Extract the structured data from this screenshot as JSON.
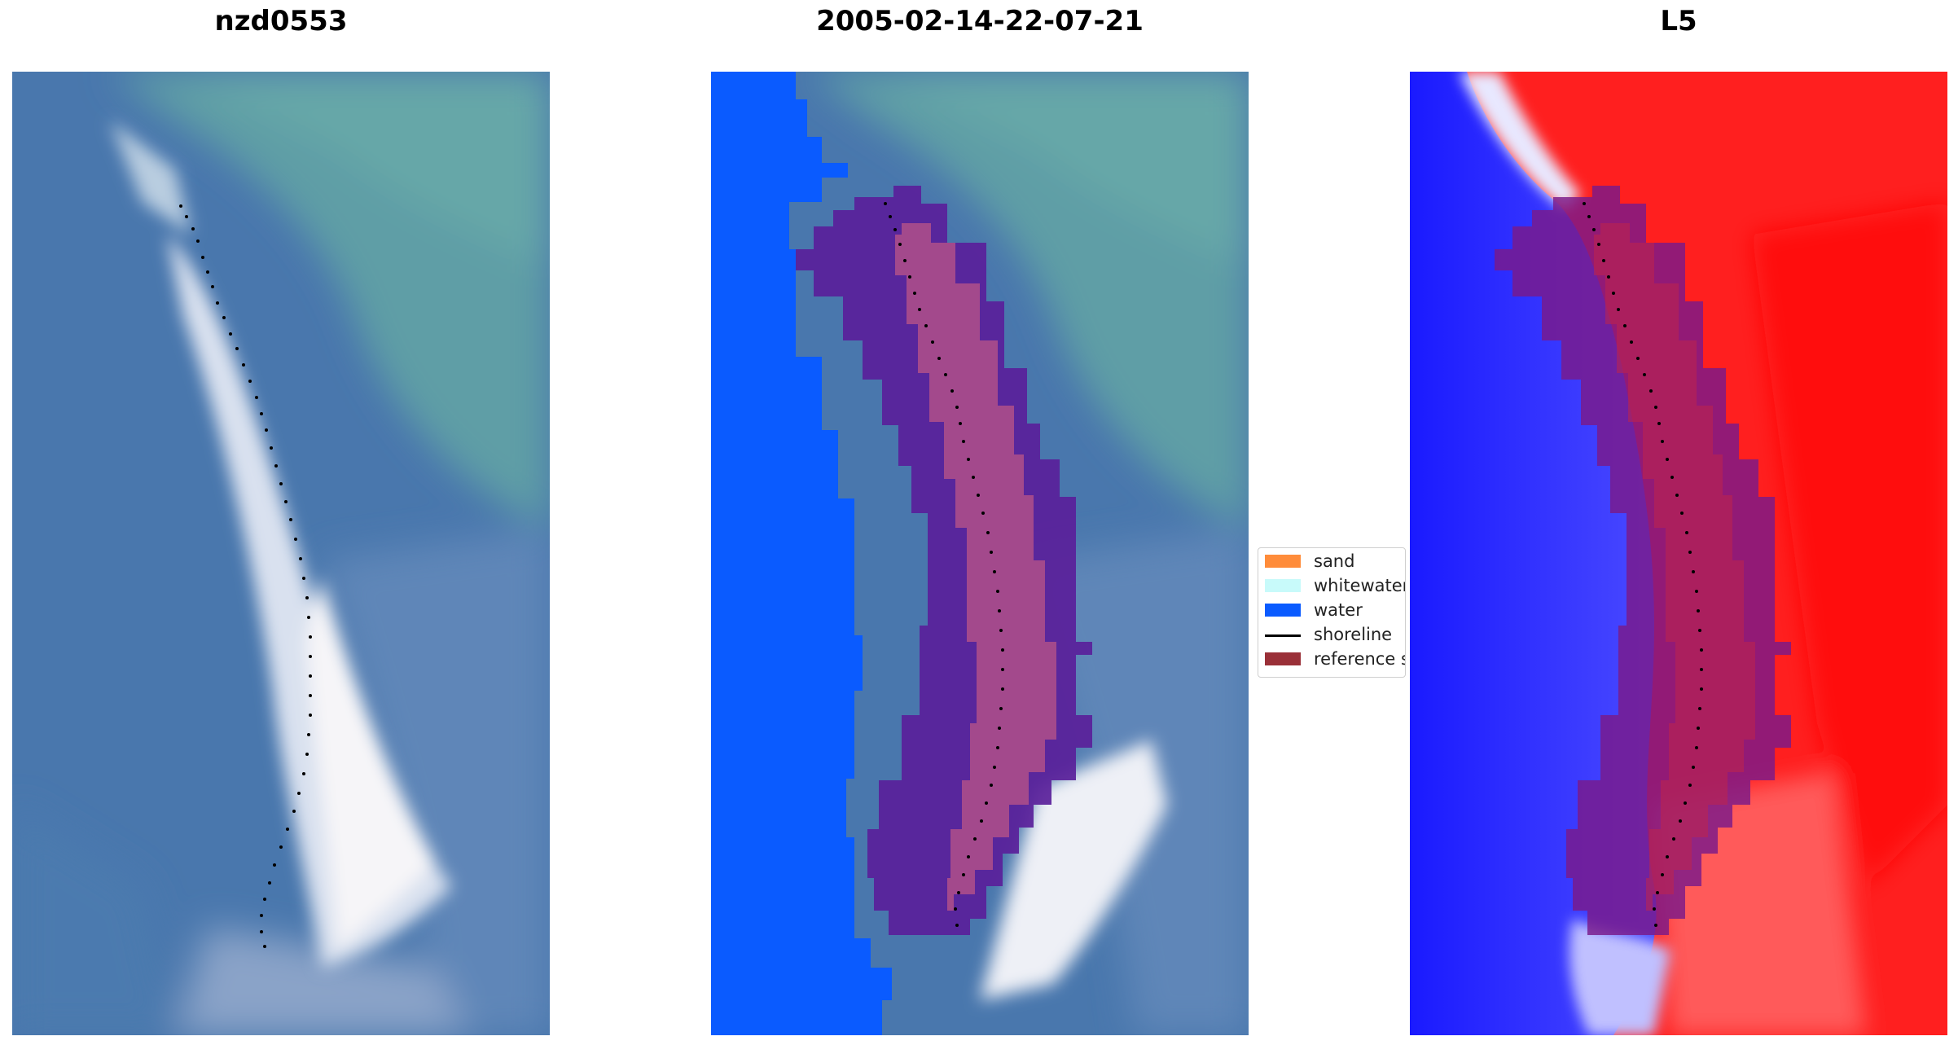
{
  "titles": {
    "left": "nzd0553",
    "center": "2005-02-14-22-07-21",
    "right": "L5"
  },
  "legend": {
    "items": [
      {
        "label": "sand",
        "color": "#ff8c3a",
        "kind": "patch"
      },
      {
        "label": "whitewater",
        "color": "#c8fafa",
        "kind": "patch"
      },
      {
        "label": "water",
        "color": "#0a5bff",
        "kind": "patch"
      },
      {
        "label": "shoreline",
        "color": "#000000",
        "kind": "line"
      },
      {
        "label": "reference shoreline",
        "color": "#9a3038",
        "kind": "patch"
      }
    ]
  },
  "colors": {
    "ocean": "#4a7ab0",
    "teal_shallow": "#5f9ea4",
    "sand_white": "#f2f2f6",
    "water_class": "#0a5bff",
    "buffer": "#5a1f9a",
    "buffer_inner": "#b0508a",
    "index_water": "#3a3aff",
    "index_land": "#ff2626"
  }
}
